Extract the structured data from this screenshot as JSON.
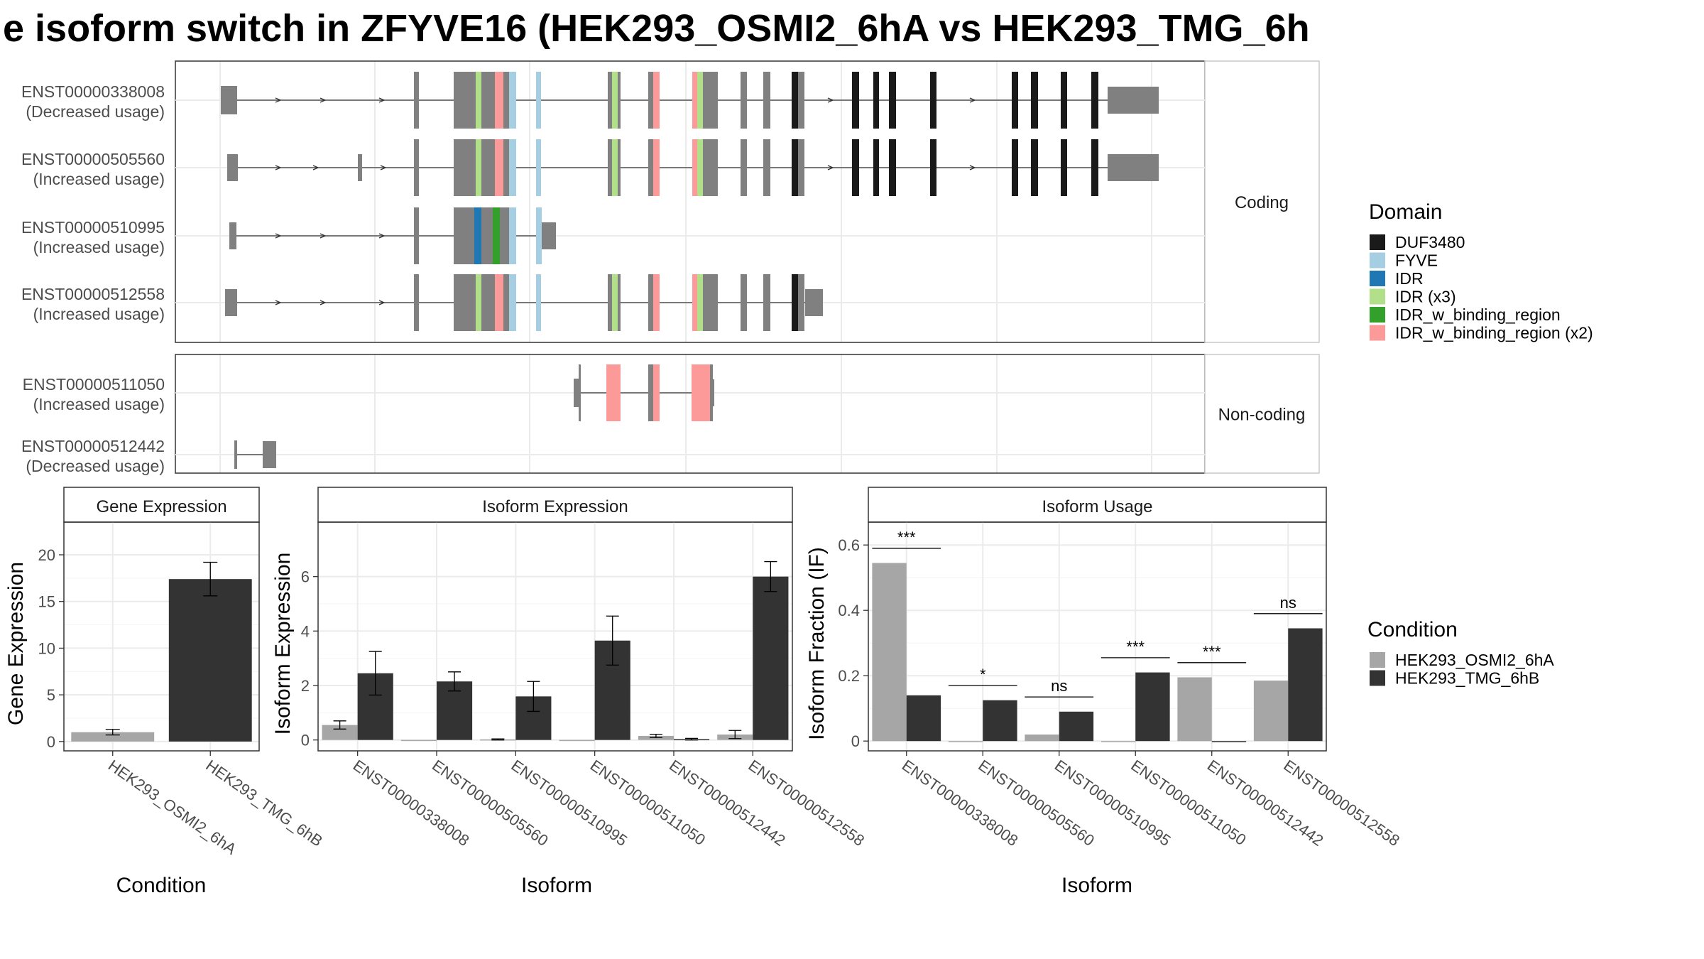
{
  "title": "e isoform switch in ZFYVE16 (HEK293_OSMI2_6hA vs HEK293_TMG_6h",
  "structure": {
    "coding_label": "Coding",
    "noncoding_label": "Non-coding",
    "transcripts": [
      {
        "id": "ENST00000338008",
        "usage": "(Decreased usage)",
        "group": "Coding"
      },
      {
        "id": "ENST00000505560",
        "usage": "(Increased usage)",
        "group": "Coding"
      },
      {
        "id": "ENST00000510995",
        "usage": "(Increased usage)",
        "group": "Coding"
      },
      {
        "id": "ENST00000512558",
        "usage": "(Increased usage)",
        "group": "Coding"
      },
      {
        "id": "ENST00000511050",
        "usage": "(Increased usage)",
        "group": "Non-coding"
      },
      {
        "id": "ENST00000512442",
        "usage": "(Decreased usage)",
        "group": "Non-coding"
      }
    ]
  },
  "legend_domain": {
    "title": "Domain",
    "items": [
      {
        "label": "DUF3480",
        "color": "#1a1a1a"
      },
      {
        "label": "FYVE",
        "color": "#a6cee3"
      },
      {
        "label": "IDR",
        "color": "#1f78b4"
      },
      {
        "label": "IDR (x3)",
        "color": "#b2df8a"
      },
      {
        "label": "IDR_w_binding_region",
        "color": "#33a02c"
      },
      {
        "label": "IDR_w_binding_region (x2)",
        "color": "#fb9a99"
      }
    ]
  },
  "legend_condition": {
    "title": "Condition",
    "items": [
      {
        "label": "HEK293_OSMI2_6hA",
        "color": "#a6a6a6"
      },
      {
        "label": "HEK293_TMG_6hB",
        "color": "#333333"
      }
    ]
  },
  "chart_data": [
    {
      "type": "bar",
      "title": "Gene Expression",
      "xlabel": "Condition",
      "ylabel": "Gene Expression",
      "categories": [
        "HEK293_OSMI2_6hA",
        "HEK293_TMG_6hB"
      ],
      "values": [
        1.0,
        17.4
      ],
      "errors": [
        0.3,
        1.8
      ],
      "yticks": [
        0,
        5,
        10,
        15,
        20
      ],
      "ylim": [
        -1,
        23.5
      ]
    },
    {
      "type": "bar",
      "title": "Isoform Expression",
      "xlabel": "Isoform",
      "ylabel": "Isoform Expression",
      "categories": [
        "ENST00000338008",
        "ENST00000505560",
        "ENST00000510995",
        "ENST00000511050",
        "ENST00000512442",
        "ENST00000512558"
      ],
      "series": [
        {
          "name": "HEK293_OSMI2_6hA",
          "values": [
            0.55,
            0.0,
            0.02,
            0.0,
            0.15,
            0.2
          ],
          "errors": [
            0.15,
            0.0,
            0.02,
            0.0,
            0.06,
            0.15
          ]
        },
        {
          "name": "HEK293_TMG_6hB",
          "values": [
            2.45,
            2.15,
            1.6,
            3.65,
            0.03,
            6.0
          ],
          "errors": [
            0.8,
            0.35,
            0.55,
            0.9,
            0.03,
            0.55
          ]
        }
      ],
      "yticks": [
        0,
        2,
        4,
        6
      ],
      "ylim": [
        -0.4,
        8.0
      ]
    },
    {
      "type": "bar",
      "title": "Isoform Usage",
      "xlabel": "Isoform",
      "ylabel": "Isoform Fraction (IF)",
      "categories": [
        "ENST00000338008",
        "ENST00000505560",
        "ENST00000510995",
        "ENST00000511050",
        "ENST00000512442",
        "ENST00000512558"
      ],
      "series": [
        {
          "name": "HEK293_OSMI2_6hA",
          "values": [
            0.545,
            0.0,
            0.02,
            0.0,
            0.195,
            0.185
          ]
        },
        {
          "name": "HEK293_TMG_6hB",
          "values": [
            0.14,
            0.125,
            0.09,
            0.21,
            0.0,
            0.345
          ]
        }
      ],
      "significance": [
        "***",
        "*",
        "ns",
        "***",
        "***",
        "ns"
      ],
      "yticks": [
        0.0,
        0.2,
        0.4,
        0.6
      ],
      "ylim": [
        -0.03,
        0.67
      ]
    }
  ]
}
